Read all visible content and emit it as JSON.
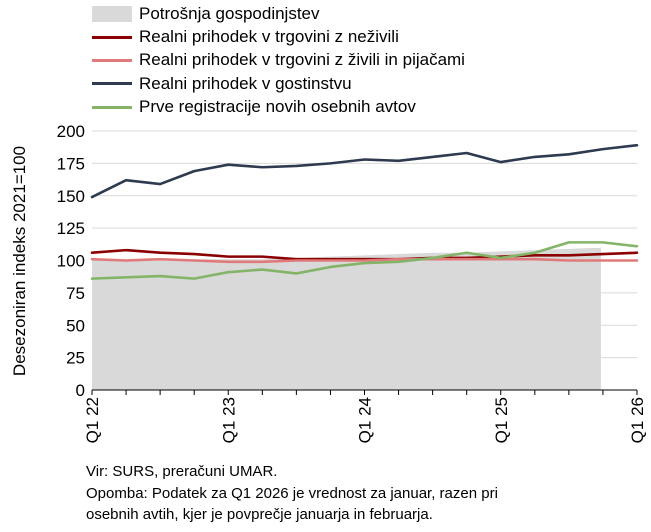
{
  "chart_data": {
    "type": "line",
    "ylabel": "Desezoniran indeks 2021=100",
    "ylim": [
      0,
      200
    ],
    "yticks": [
      0,
      25,
      50,
      75,
      100,
      125,
      150,
      175,
      200
    ],
    "x_tick_labels": [
      "Q1 22",
      "Q1 23",
      "Q1 24",
      "Q1 25",
      "Q1 26"
    ],
    "x": [
      "Q1 22",
      "Q2 22",
      "Q3 22",
      "Q4 22",
      "Q1 23",
      "Q2 23",
      "Q3 23",
      "Q4 23",
      "Q1 24",
      "Q2 24",
      "Q3 24",
      "Q4 24",
      "Q1 25",
      "Q2 25",
      "Q3 25",
      "Q4 25",
      "Q1 26"
    ],
    "area_series": {
      "name": "Potrošnja gospodinjstev",
      "color": "#d9d9d9",
      "values": [
        100,
        100,
        101,
        101,
        101,
        101,
        102,
        103,
        104,
        105,
        106,
        106,
        107,
        108,
        109,
        110,
        null
      ]
    },
    "series": [
      {
        "name": "Realni prihodek v trgovini z neživili",
        "color": "#8b0000",
        "values": [
          106,
          108,
          106,
          105,
          103,
          103,
          101,
          101,
          101,
          101,
          102,
          102,
          103,
          104,
          104,
          105,
          106
        ]
      },
      {
        "name": "Realni prihodek v trgovini z živili in pijačami",
        "color": "#e07a7a",
        "values": [
          101,
          100,
          101,
          100,
          99,
          99,
          100,
          100,
          100,
          101,
          101,
          101,
          101,
          101,
          100,
          100,
          100
        ]
      },
      {
        "name": "Realni prihodek v gostinstvu",
        "color": "#2e3a4f",
        "values": [
          149,
          162,
          159,
          169,
          174,
          172,
          173,
          175,
          178,
          177,
          180,
          183,
          176,
          180,
          182,
          186,
          189
        ]
      },
      {
        "name": "Prve registracije novih osebnih avtov",
        "color": "#84b468",
        "values": [
          86,
          87,
          88,
          86,
          91,
          93,
          90,
          95,
          98,
          99,
          102,
          106,
          102,
          106,
          114,
          114,
          111
        ]
      }
    ],
    "legend_position": "top"
  },
  "notes": {
    "source": "Vir: SURS, preračuni UMAR.",
    "remark_line1": "Opomba: Podatek za Q1 2026 je vrednost za januar, razen pri",
    "remark_line2": "osebnih avtih, kjer je povprečje januarja in februarja."
  }
}
